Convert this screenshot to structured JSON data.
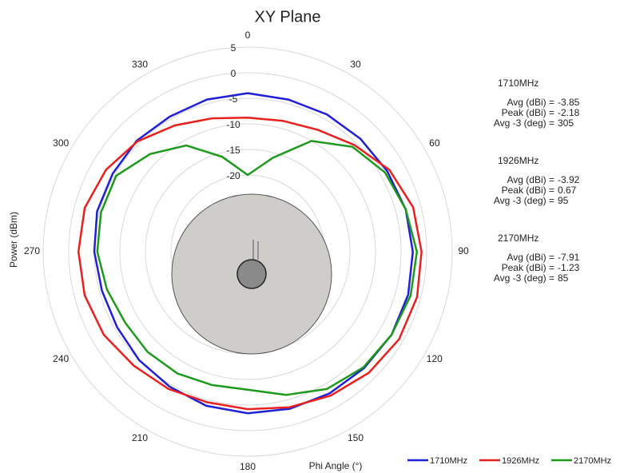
{
  "chart_data": {
    "type": "polar",
    "title": "XY Plane",
    "x_label": "Phi Angle (°)",
    "y_label": "Power (dBm)",
    "angles": [
      0,
      15,
      30,
      45,
      60,
      75,
      90,
      105,
      120,
      135,
      150,
      165,
      180,
      195,
      210,
      225,
      240,
      255,
      270,
      285,
      300,
      315,
      330,
      345
    ],
    "angle_ticks": [
      0,
      30,
      60,
      90,
      120,
      150,
      180,
      210,
      240,
      270,
      300,
      330
    ],
    "rlim": [
      -35,
      5
    ],
    "rticks": [
      5,
      0,
      -5,
      -10,
      -15,
      -20
    ],
    "grid": true,
    "series": [
      {
        "name": "1710MHz",
        "color": "#1f1fd6",
        "values": [
          -4,
          -4.2,
          -4,
          -3.8,
          -3.5,
          -3,
          -2.7,
          -2.5,
          -2.5,
          -2.8,
          -3,
          -3.2,
          -3.4,
          -3.8,
          -4.5,
          -5,
          -5.5,
          -5.5,
          -5,
          -4.5,
          -4.5,
          -4.3,
          -4.5,
          -4.2
        ]
      },
      {
        "name": "1926MHz",
        "color": "#e8201e",
        "values": [
          -8.8,
          -8.5,
          -7.5,
          -5.5,
          -3,
          -1.5,
          -1,
          -0.7,
          -0.8,
          -1.5,
          -2.5,
          -3.5,
          -4.2,
          -4.5,
          -4,
          -3.5,
          -2.5,
          -2,
          -1.9,
          -2,
          -3,
          -4.5,
          -6.5,
          -8
        ]
      },
      {
        "name": "2170MHz",
        "color": "#1c9a1c",
        "values": [
          -20,
          -16,
          -10,
          -6,
          -4,
          -3,
          -1.9,
          -2,
          -2.5,
          -3,
          -4,
          -6,
          -8,
          -8,
          -7.5,
          -7.3,
          -7.3,
          -6.5,
          -5.6,
          -5.3,
          -5.3,
          -8,
          -11,
          -15.8
        ]
      }
    ],
    "stats": [
      {
        "freq": "1710MHz",
        "labels": [
          "Avg (dBi) =",
          "Peak (dBi) =",
          "Avg -3 (deg) ="
        ],
        "values": [
          -3.85,
          -2.18,
          305
        ]
      },
      {
        "freq": "1926MHz",
        "labels": [
          "Avg (dBi) =",
          "Peak (dBi) =",
          "Avg -3 (deg) ="
        ],
        "values": [
          -3.92,
          0.67,
          95
        ]
      },
      {
        "freq": "2170MHz",
        "labels": [
          "Avg (dBi) =",
          "Peak (dBi) =",
          "Avg -3 (deg) ="
        ],
        "values": [
          -7.91,
          -1.23,
          85
        ]
      }
    ]
  }
}
